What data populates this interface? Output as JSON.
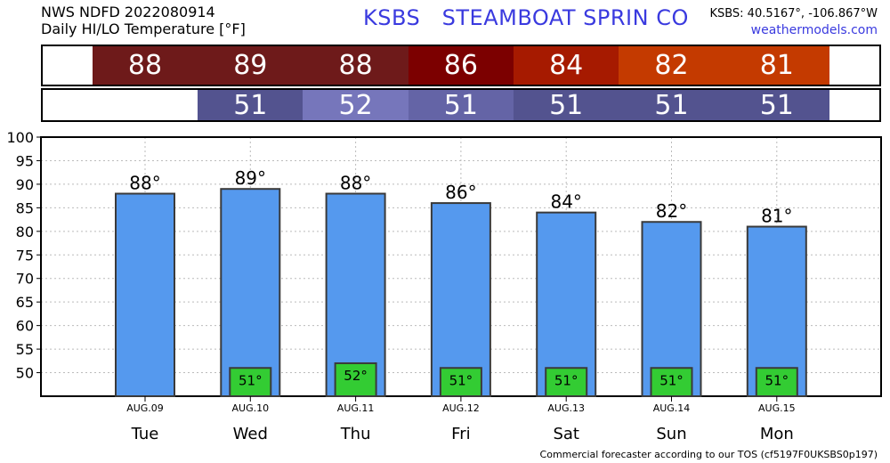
{
  "header": {
    "line1": "NWS NDFD 2022080914",
    "line2": "Daily HI/LO Temperature [°F]",
    "station": "KSBS   STEAMBOAT SPRIN CO",
    "coords": "KSBS: 40.5167°, -106.867°W",
    "site": "weathermodels.com"
  },
  "hi_strip": [
    {
      "value": "88",
      "color": "#6e1a1a"
    },
    {
      "value": "89",
      "color": "#6e1a1a"
    },
    {
      "value": "88",
      "color": "#6e1a1a"
    },
    {
      "value": "86",
      "color": "#7c0000"
    },
    {
      "value": "84",
      "color": "#a61a00"
    },
    {
      "value": "82",
      "color": "#c43a00"
    },
    {
      "value": "81",
      "color": "#c43a00"
    }
  ],
  "lo_strip": [
    {
      "value": "",
      "color": "#ffffff"
    },
    {
      "value": "51",
      "color": "#53538f"
    },
    {
      "value": "52",
      "color": "#7676bb"
    },
    {
      "value": "51",
      "color": "#6464a6"
    },
    {
      "value": "51",
      "color": "#53538f"
    },
    {
      "value": "51",
      "color": "#53538f"
    },
    {
      "value": "51",
      "color": "#53538f"
    }
  ],
  "chart_data": {
    "type": "bar",
    "categories": [
      "Tue",
      "Wed",
      "Thu",
      "Fri",
      "Sat",
      "Sun",
      "Mon"
    ],
    "dates": [
      "AUG.09",
      "AUG.10",
      "AUG.11",
      "AUG.12",
      "AUG.13",
      "AUG.14",
      "AUG.15"
    ],
    "series": [
      {
        "name": "HI",
        "values": [
          88,
          89,
          88,
          86,
          84,
          82,
          81
        ],
        "labels": [
          "88°",
          "89°",
          "88°",
          "86°",
          "84°",
          "82°",
          "81°"
        ]
      },
      {
        "name": "LO",
        "values": [
          null,
          51,
          52,
          51,
          51,
          51,
          51
        ],
        "labels": [
          "",
          "51°",
          "52°",
          "51°",
          "51°",
          "51°",
          "51°"
        ]
      }
    ],
    "ylim": [
      45,
      100
    ],
    "yticks": [
      "100",
      "95",
      "90",
      "85",
      "80",
      "75",
      "70",
      "65",
      "60",
      "55",
      "50"
    ],
    "ytick_values": [
      100,
      95,
      90,
      85,
      80,
      75,
      70,
      65,
      60,
      55,
      50
    ],
    "grid": true,
    "colors": {
      "hi_bar": "#5599ee",
      "lo_bar": "#33cc33",
      "bar_edge": "#3a3a3a"
    }
  },
  "footer": "Commercial forecaster according to our TOS (cf5197F0UKSBS0p197)"
}
